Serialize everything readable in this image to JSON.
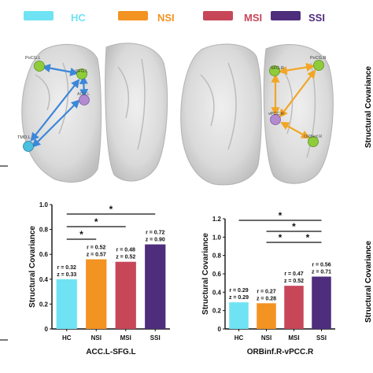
{
  "legend": {
    "items": [
      {
        "label": "HC",
        "color": "#6fe3f4"
      },
      {
        "label": "NSI",
        "color": "#f39322"
      },
      {
        "label": "MSI",
        "color": "#c74759"
      },
      {
        "label": "SSI",
        "color": "#4e2d7d"
      }
    ]
  },
  "brain_left": {
    "nodes": [
      {
        "label": "PoCG.L",
        "color": "#8fcc3a"
      },
      {
        "label": "SFG.L",
        "color": "#8fcc3a"
      },
      {
        "label": "ACC.L",
        "color": "#b28bd0"
      },
      {
        "label": "TMO.L",
        "color": "#4bbfe0"
      }
    ],
    "edge_color": "#3b87d9"
  },
  "brain_right": {
    "nodes": [
      {
        "label": "SFG.R",
        "color": "#8fcc3a"
      },
      {
        "label": "PoCG.R",
        "color": "#8fcc3a"
      },
      {
        "label": "vPCC.R",
        "color": "#b28bd0"
      },
      {
        "label": "ORBinf.R",
        "color": "#8fcc3a"
      }
    ],
    "edge_color": "#f2a624"
  },
  "side_labels": {
    "top": "Structural Covariance",
    "bottom": "Structural Covariance"
  },
  "sig_marker": "*",
  "chart_data": [
    {
      "type": "bar",
      "title": "",
      "xlabel": "ACC.L-SFG.L",
      "ylabel": "Structural Covariance",
      "categories": [
        "HC",
        "NSI",
        "MSI",
        "SSI"
      ],
      "values": [
        0.4,
        0.56,
        0.54,
        0.68
      ],
      "colors": [
        "#6fe3f4",
        "#f39322",
        "#c74759",
        "#4e2d7d"
      ],
      "ylim": [
        0,
        1.0
      ],
      "yticks": [
        "0",
        "0.2",
        "0.4",
        "0.6",
        "0.8",
        "1.0"
      ],
      "annotations": [
        {
          "r": "r = 0.32",
          "z": "z = 0.33"
        },
        {
          "r": "r = 0.52",
          "z": "z = 0.57"
        },
        {
          "r": "r = 0.48",
          "z": "z = 0.52"
        },
        {
          "r": "r = 0.72",
          "z": "z = 0.90"
        }
      ],
      "significance": [
        {
          "from": "HC",
          "to": "SSI",
          "label": "*"
        },
        {
          "from": "HC",
          "to": "MSI",
          "label": "*"
        },
        {
          "from": "HC",
          "to": "NSI",
          "label": "*"
        }
      ]
    },
    {
      "type": "bar",
      "title": "",
      "xlabel": "ORBinf.R-vPCC.R",
      "ylabel": "Structural Covariance",
      "categories": [
        "HC",
        "NSI",
        "MSI",
        "SSI"
      ],
      "values": [
        0.29,
        0.28,
        0.47,
        0.57
      ],
      "colors": [
        "#6fe3f4",
        "#f39322",
        "#c74759",
        "#4e2d7d"
      ],
      "ylim": [
        0,
        1.2
      ],
      "yticks": [
        "0",
        "0.2",
        "0.4",
        "0.6",
        "0.8",
        "1.0",
        "1.2"
      ],
      "annotations": [
        {
          "r": "r = 0.29",
          "z": "z = 0.29"
        },
        {
          "r": "r = 0.27",
          "z": "z = 0.28"
        },
        {
          "r": "r = 0.47",
          "z": "z = 0.52"
        },
        {
          "r": "r = 0.56",
          "z": "z = 0.71"
        }
      ],
      "significance": [
        {
          "from": "HC",
          "to": "SSI",
          "label": "*"
        },
        {
          "from": "NSI",
          "to": "SSI",
          "label": "*"
        },
        {
          "from": "NSI",
          "to": "MSI",
          "label": "*"
        },
        {
          "from": "MSI",
          "to": "SSI",
          "label": "*"
        }
      ]
    }
  ]
}
